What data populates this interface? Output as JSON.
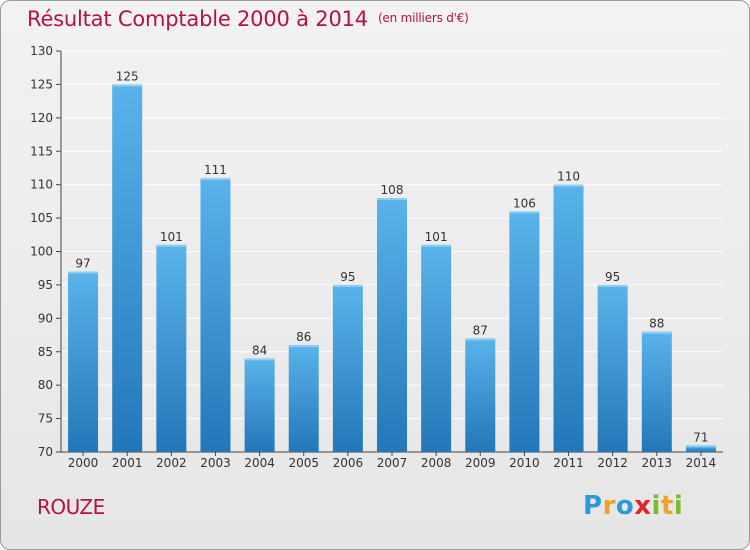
{
  "title": "Résultat Comptable 2000 à 2014",
  "unit": "(en milliers d'€)",
  "place": "ROUZE",
  "logo": {
    "text": "Proxiti",
    "letters": [
      {
        "char": "P",
        "color": "#2b9ad6"
      },
      {
        "char": "r",
        "color": "#f0a12a"
      },
      {
        "char": "o",
        "color": "#2b9ad6"
      },
      {
        "char": "x",
        "color": "#e2232a"
      },
      {
        "char": "i",
        "color": "#7dbb2e"
      },
      {
        "char": "t",
        "color": "#f0a12a"
      },
      {
        "char": "i",
        "color": "#7dbb2e"
      }
    ]
  },
  "colors": {
    "title": "#b5104a",
    "bar_top": "#5ab3ea",
    "bar_bottom": "#2377b9",
    "grid": "#ffffff",
    "axis": "#444444"
  },
  "chart_data": {
    "type": "bar",
    "title": "Résultat Comptable 2000 à 2014",
    "ylabel": "(en milliers d'€)",
    "xlabel": "",
    "categories": [
      "2000",
      "2001",
      "2002",
      "2003",
      "2004",
      "2005",
      "2006",
      "2007",
      "2008",
      "2009",
      "2010",
      "2011",
      "2012",
      "2013",
      "2014"
    ],
    "values": [
      97,
      125,
      101,
      111,
      84,
      86,
      95,
      108,
      101,
      87,
      106,
      110,
      95,
      88,
      71
    ],
    "ylim": [
      70,
      130
    ],
    "yticks": [
      70,
      75,
      80,
      85,
      90,
      95,
      100,
      105,
      110,
      115,
      120,
      125,
      130
    ],
    "grid": true,
    "legend": "none"
  }
}
